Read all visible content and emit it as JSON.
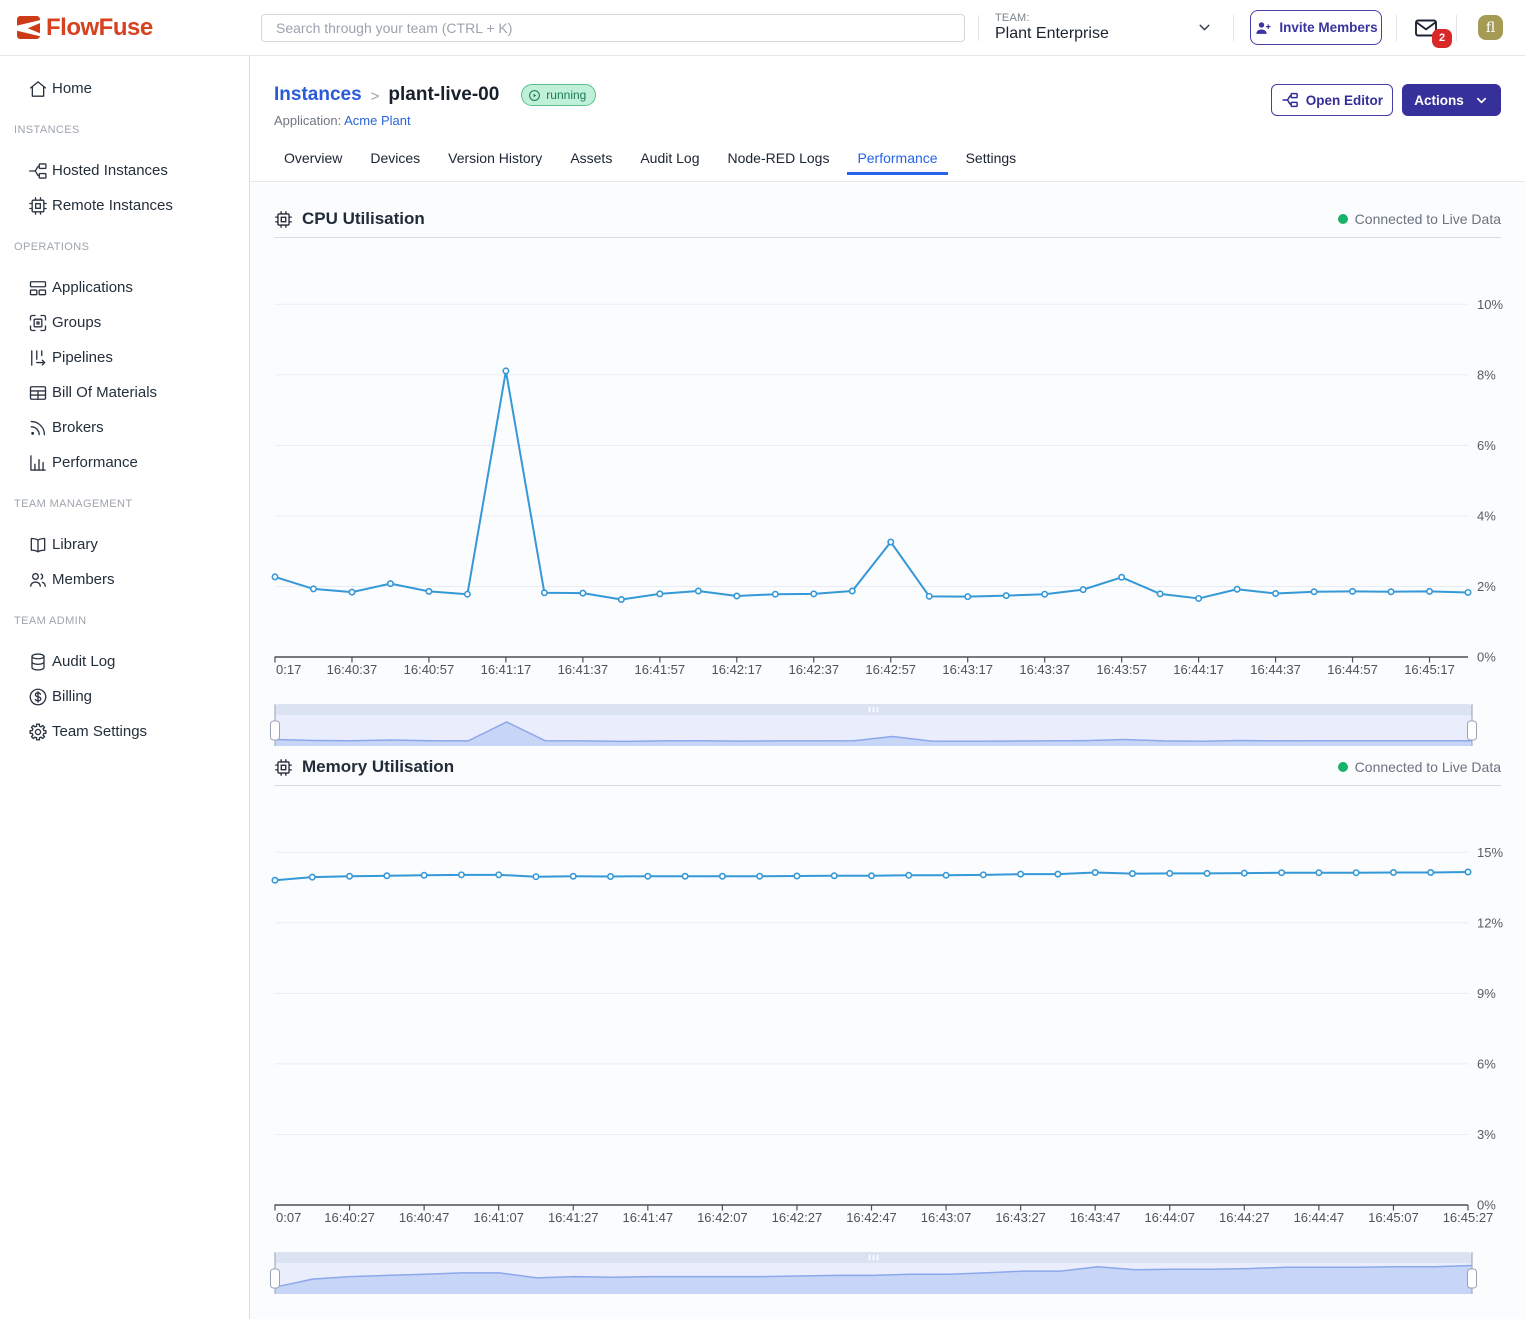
{
  "brand": {
    "name": "FlowFuse",
    "color": "#d6411f"
  },
  "header": {
    "search_placeholder": "Search through your team (CTRL + K)",
    "team_label": "TEAM:",
    "team_name": "Plant Enterprise",
    "invite_button": "Invite Members",
    "mail_badge": "2",
    "avatar_initials": "fl"
  },
  "sidebar": {
    "sections": [
      {
        "title": "",
        "items": [
          {
            "icon": "home-icon",
            "label": "Home"
          }
        ]
      },
      {
        "title": "INSTANCES",
        "items": [
          {
            "icon": "hosted-instances-icon",
            "label": "Hosted Instances"
          },
          {
            "icon": "chip-icon",
            "label": "Remote Instances"
          }
        ]
      },
      {
        "title": "OPERATIONS",
        "items": [
          {
            "icon": "applications-icon",
            "label": "Applications"
          },
          {
            "icon": "groups-icon",
            "label": "Groups"
          },
          {
            "icon": "pipelines-icon",
            "label": "Pipelines"
          },
          {
            "icon": "bill-of-materials-icon",
            "label": "Bill Of Materials"
          },
          {
            "icon": "brokers-icon",
            "label": "Brokers"
          },
          {
            "icon": "performance-icon",
            "label": "Performance"
          }
        ]
      },
      {
        "title": "TEAM MANAGEMENT",
        "items": [
          {
            "icon": "library-icon",
            "label": "Library"
          },
          {
            "icon": "members-icon",
            "label": "Members"
          }
        ]
      },
      {
        "title": "TEAM ADMIN",
        "items": [
          {
            "icon": "audit-log-icon",
            "label": "Audit Log"
          },
          {
            "icon": "billing-icon",
            "label": "Billing"
          },
          {
            "icon": "team-settings-icon",
            "label": "Team Settings"
          }
        ]
      }
    ]
  },
  "page": {
    "breadcrumb_root": "Instances",
    "breadcrumb_sep": ">",
    "instance_name": "plant-live-00",
    "status": "running",
    "application_label": "Application:",
    "application_name": "Acme Plant",
    "open_editor_button": "Open Editor",
    "actions_button": "Actions"
  },
  "tabs": {
    "items": [
      "Overview",
      "Devices",
      "Version History",
      "Assets",
      "Audit Log",
      "Node-RED Logs",
      "Performance",
      "Settings"
    ],
    "active": "Performance"
  },
  "chart_data": [
    {
      "type": "line",
      "title": "CPU Utilisation",
      "status": "Connected to Live Data",
      "status_color": "#17b26a",
      "line_color": "#3598d7",
      "ylim": [
        0,
        10
      ],
      "ytick_labels": [
        "0%",
        "2%",
        "4%",
        "6%",
        "8%",
        "10%"
      ],
      "x_tick_labels": [
        "0:17",
        "16:40:37",
        "16:40:57",
        "16:41:17",
        "16:41:37",
        "16:41:57",
        "16:42:17",
        "16:42:37",
        "16:42:57",
        "16:43:17",
        "16:43:37",
        "16:43:57",
        "16:44:17",
        "16:44:37",
        "16:44:57",
        "16:45:17"
      ],
      "label_every": 2,
      "brush_ylim": [
        0.1,
        10.4
      ],
      "values": [
        2.27,
        1.93,
        1.84,
        2.08,
        1.86,
        1.78,
        8.11,
        1.82,
        1.81,
        1.63,
        1.79,
        1.87,
        1.73,
        1.78,
        1.79,
        1.87,
        3.26,
        1.72,
        1.71,
        1.74,
        1.78,
        1.91,
        2.26,
        1.79,
        1.66,
        1.92,
        1.8,
        1.85,
        1.86,
        1.85,
        1.86,
        1.83
      ],
      "grid": true,
      "legend": false
    },
    {
      "type": "line",
      "title": "Memory Utilisation",
      "status": "Connected to Live Data",
      "status_color": "#17b26a",
      "line_color": "#3598d7",
      "ylim": [
        0,
        15
      ],
      "ytick_labels": [
        "0%",
        "3%",
        "6%",
        "9%",
        "12%",
        "15%"
      ],
      "x_tick_labels": [
        "0:07",
        "16:40:27",
        "16:40:47",
        "16:41:07",
        "16:41:27",
        "16:41:47",
        "16:42:07",
        "16:42:27",
        "16:42:47",
        "16:43:07",
        "16:43:27",
        "16:43:47",
        "16:44:07",
        "16:44:27",
        "16:44:47",
        "16:45:07",
        "16:45:27"
      ],
      "label_every": 2,
      "brush_ylim": [
        13.7,
        14.2
      ],
      "values": [
        13.81,
        13.94,
        13.98,
        14.0,
        14.02,
        14.04,
        14.04,
        13.96,
        13.98,
        13.97,
        13.98,
        13.98,
        13.98,
        13.98,
        13.99,
        14.0,
        14.0,
        14.02,
        14.02,
        14.04,
        14.07,
        14.07,
        14.14,
        14.09,
        14.1,
        14.1,
        14.11,
        14.13,
        14.13,
        14.13,
        14.14,
        14.14,
        14.16
      ],
      "grid": true,
      "legend": false
    }
  ]
}
